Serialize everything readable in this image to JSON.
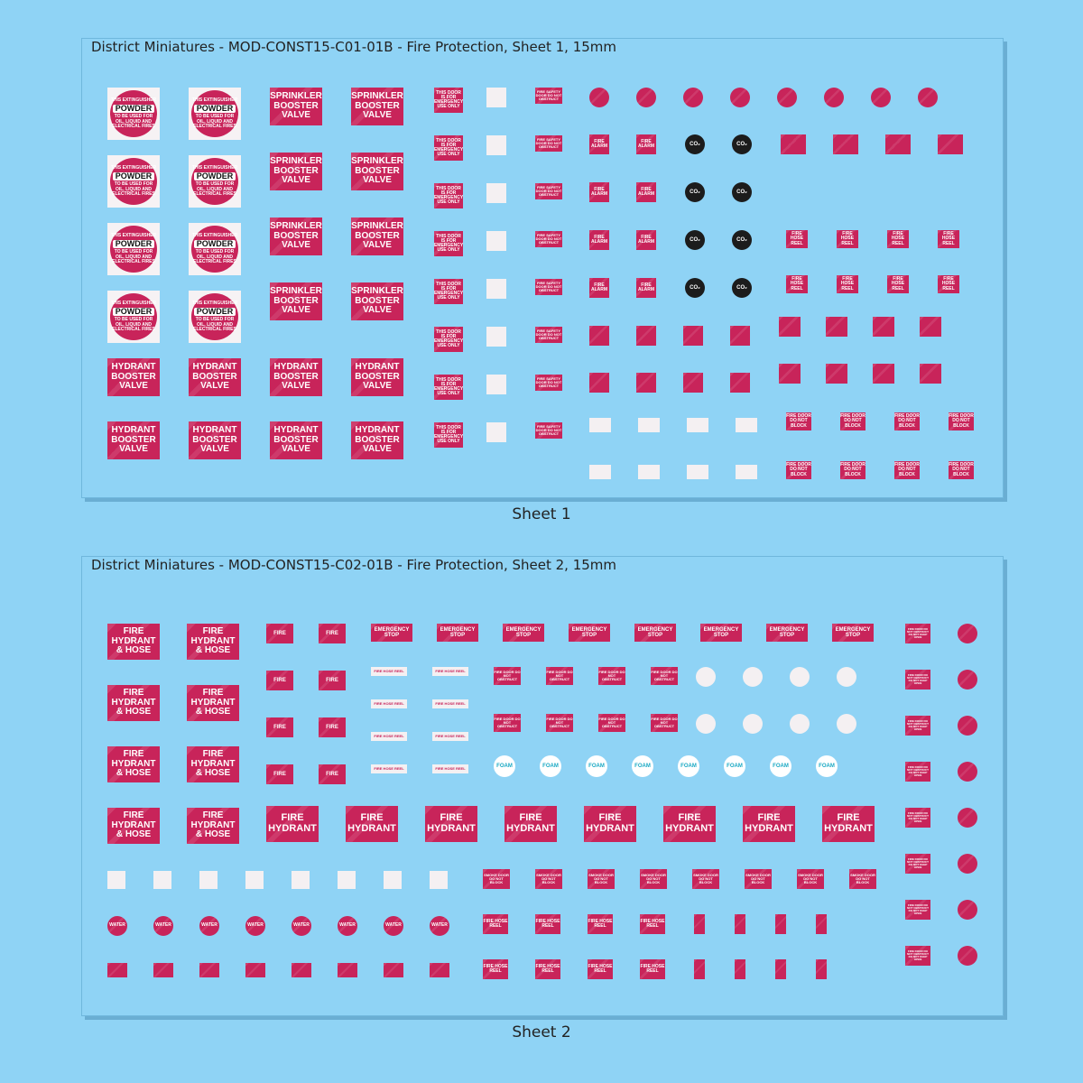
{
  "sheets": [
    {
      "title": "District Miniatures - MOD-CONST15-C01-01B - Fire Protection, Sheet 1, 15mm",
      "caption": "Sheet 1"
    },
    {
      "title": "District Miniatures - MOD-CONST15-C02-01B - Fire Protection, Sheet 2, 15mm",
      "caption": "Sheet 2"
    }
  ],
  "labels": {
    "powder_top": "THIS EXTINGUISHER",
    "powder": "POWDER",
    "powder_sub": "TO BE USED FOR OIL, LIQUID AND ELECTRICAL FIRES",
    "sprinkler": "SPRINKLER BOOSTER VALVE",
    "hydrant_booster": "HYDRANT BOOSTER VALVE",
    "door_emergency": "THIS DOOR IS FOR EMERGENCY USE ONLY",
    "fire_safety_door": "FIRE SAFETY DOOR DO NOT OBSTRUCT",
    "fire_alarm": "FIRE ALARM",
    "co2": "CO₂",
    "fire_hose_reel": "FIRE HOSE REEL",
    "fire_door_block": "FIRE DOOR DO NOT BLOCK",
    "fire_hydrant_hose": "FIRE HYDRANT & HOSE",
    "fire": "FIRE",
    "emergency_stop": "EMERGENCY STOP",
    "fire_hose_reel_strip": "FIRE HOSE REEL",
    "fire_door_obstruct": "FIRE DOOR DO NOT OBSTRUCT",
    "foam": "FOAM",
    "fire_hydrant": "FIRE HYDRANT",
    "smoke_door": "SMOKE DOOR DO NOT BLOCK",
    "water": "WATER",
    "fire_door_keep_open": "FIRE DOOR DO NOT OBSTRUCT DO NOT KEEP OPEN"
  },
  "colors": {
    "background": "#8fd3f5",
    "decal_red": "#c8245a",
    "foam_teal": "#1aa9c4"
  }
}
